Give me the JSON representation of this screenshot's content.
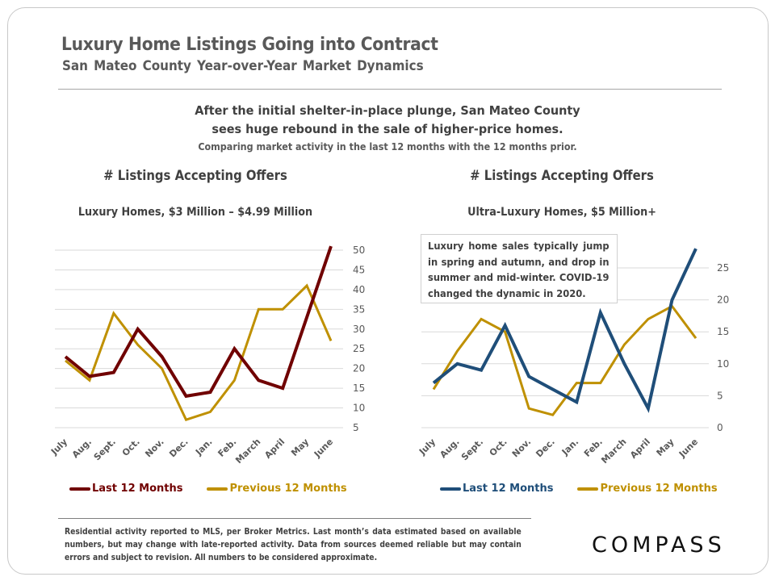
{
  "header": {
    "title": "Luxury Home Listings Going into Contract",
    "subtitle": "San Mateo County  Year-over-Year  Market  Dynamics"
  },
  "headline": {
    "line1": "After the initial shelter-in-place plunge, San Mateo County",
    "line2": "sees huge rebound in the sale of higher-price homes.",
    "line3": "Comparing market activity in the last 12 months with the 12 months prior."
  },
  "annotation": "Luxury home sales typically jump in spring and autumn, and drop in summer and mid-winter. COVID-19 changed the dynamic in 2020.",
  "footnote": "Residential activity reported to MLS, per Broker Metrics. Last month’s data estimated based on available numbers, but may change with late-reported activity. Data from sources deemed reliable but may contain errors and subject to revision. All numbers to be considered approximate.",
  "logo": "COMPASS",
  "colors": {
    "left_last": "#700000",
    "right_last": "#1f4e79",
    "previous": "#bf9000",
    "text": "#404040",
    "grid": "#d9d9d9"
  },
  "chart_data": [
    {
      "type": "line",
      "title": "# Listings Accepting Offers",
      "subtitle": "Luxury Homes, $3 Million – $4.99 Million",
      "xlabel": "",
      "ylabel": "",
      "categories": [
        "July",
        "Aug.",
        "Sept.",
        "Oct.",
        "Nov.",
        "Dec.",
        "Jan.",
        "Feb.",
        "March",
        "April",
        "May",
        "June"
      ],
      "yticks": [
        5,
        10,
        15,
        20,
        25,
        30,
        35,
        40,
        45,
        50
      ],
      "ylim": [
        5,
        50
      ],
      "grid": true,
      "yaxis_side": "right",
      "legend_position": "bottom",
      "series": [
        {
          "name": "Last 12 Months",
          "color": "#700000",
          "values": [
            23,
            18,
            19,
            30,
            23,
            13,
            14,
            25,
            17,
            15,
            33,
            51
          ]
        },
        {
          "name": "Previous 12 Months",
          "color": "#bf9000",
          "values": [
            22,
            17,
            34,
            26,
            20,
            7,
            9,
            17,
            35,
            35,
            41,
            27
          ]
        }
      ]
    },
    {
      "type": "line",
      "title": "# Listings Accepting Offers",
      "subtitle": "Ultra-Luxury Homes, $5 Million+",
      "xlabel": "",
      "ylabel": "",
      "categories": [
        "July",
        "Aug.",
        "Sept.",
        "Oct.",
        "Nov.",
        "Dec.",
        "Jan.",
        "Feb.",
        "March",
        "April",
        "May",
        "June"
      ],
      "yticks": [
        0,
        5,
        10,
        15,
        20,
        25
      ],
      "ylim": [
        0,
        25
      ],
      "grid": true,
      "yaxis_side": "right",
      "legend_position": "bottom",
      "series": [
        {
          "name": "Last 12 Months",
          "color": "#1f4e79",
          "values": [
            7,
            10,
            9,
            16,
            8,
            6,
            4,
            18,
            10,
            3,
            20,
            28
          ]
        },
        {
          "name": "Previous 12 Months",
          "color": "#bf9000",
          "values": [
            6,
            12,
            17,
            15,
            3,
            2,
            7,
            7,
            13,
            17,
            19,
            14
          ]
        }
      ]
    }
  ]
}
